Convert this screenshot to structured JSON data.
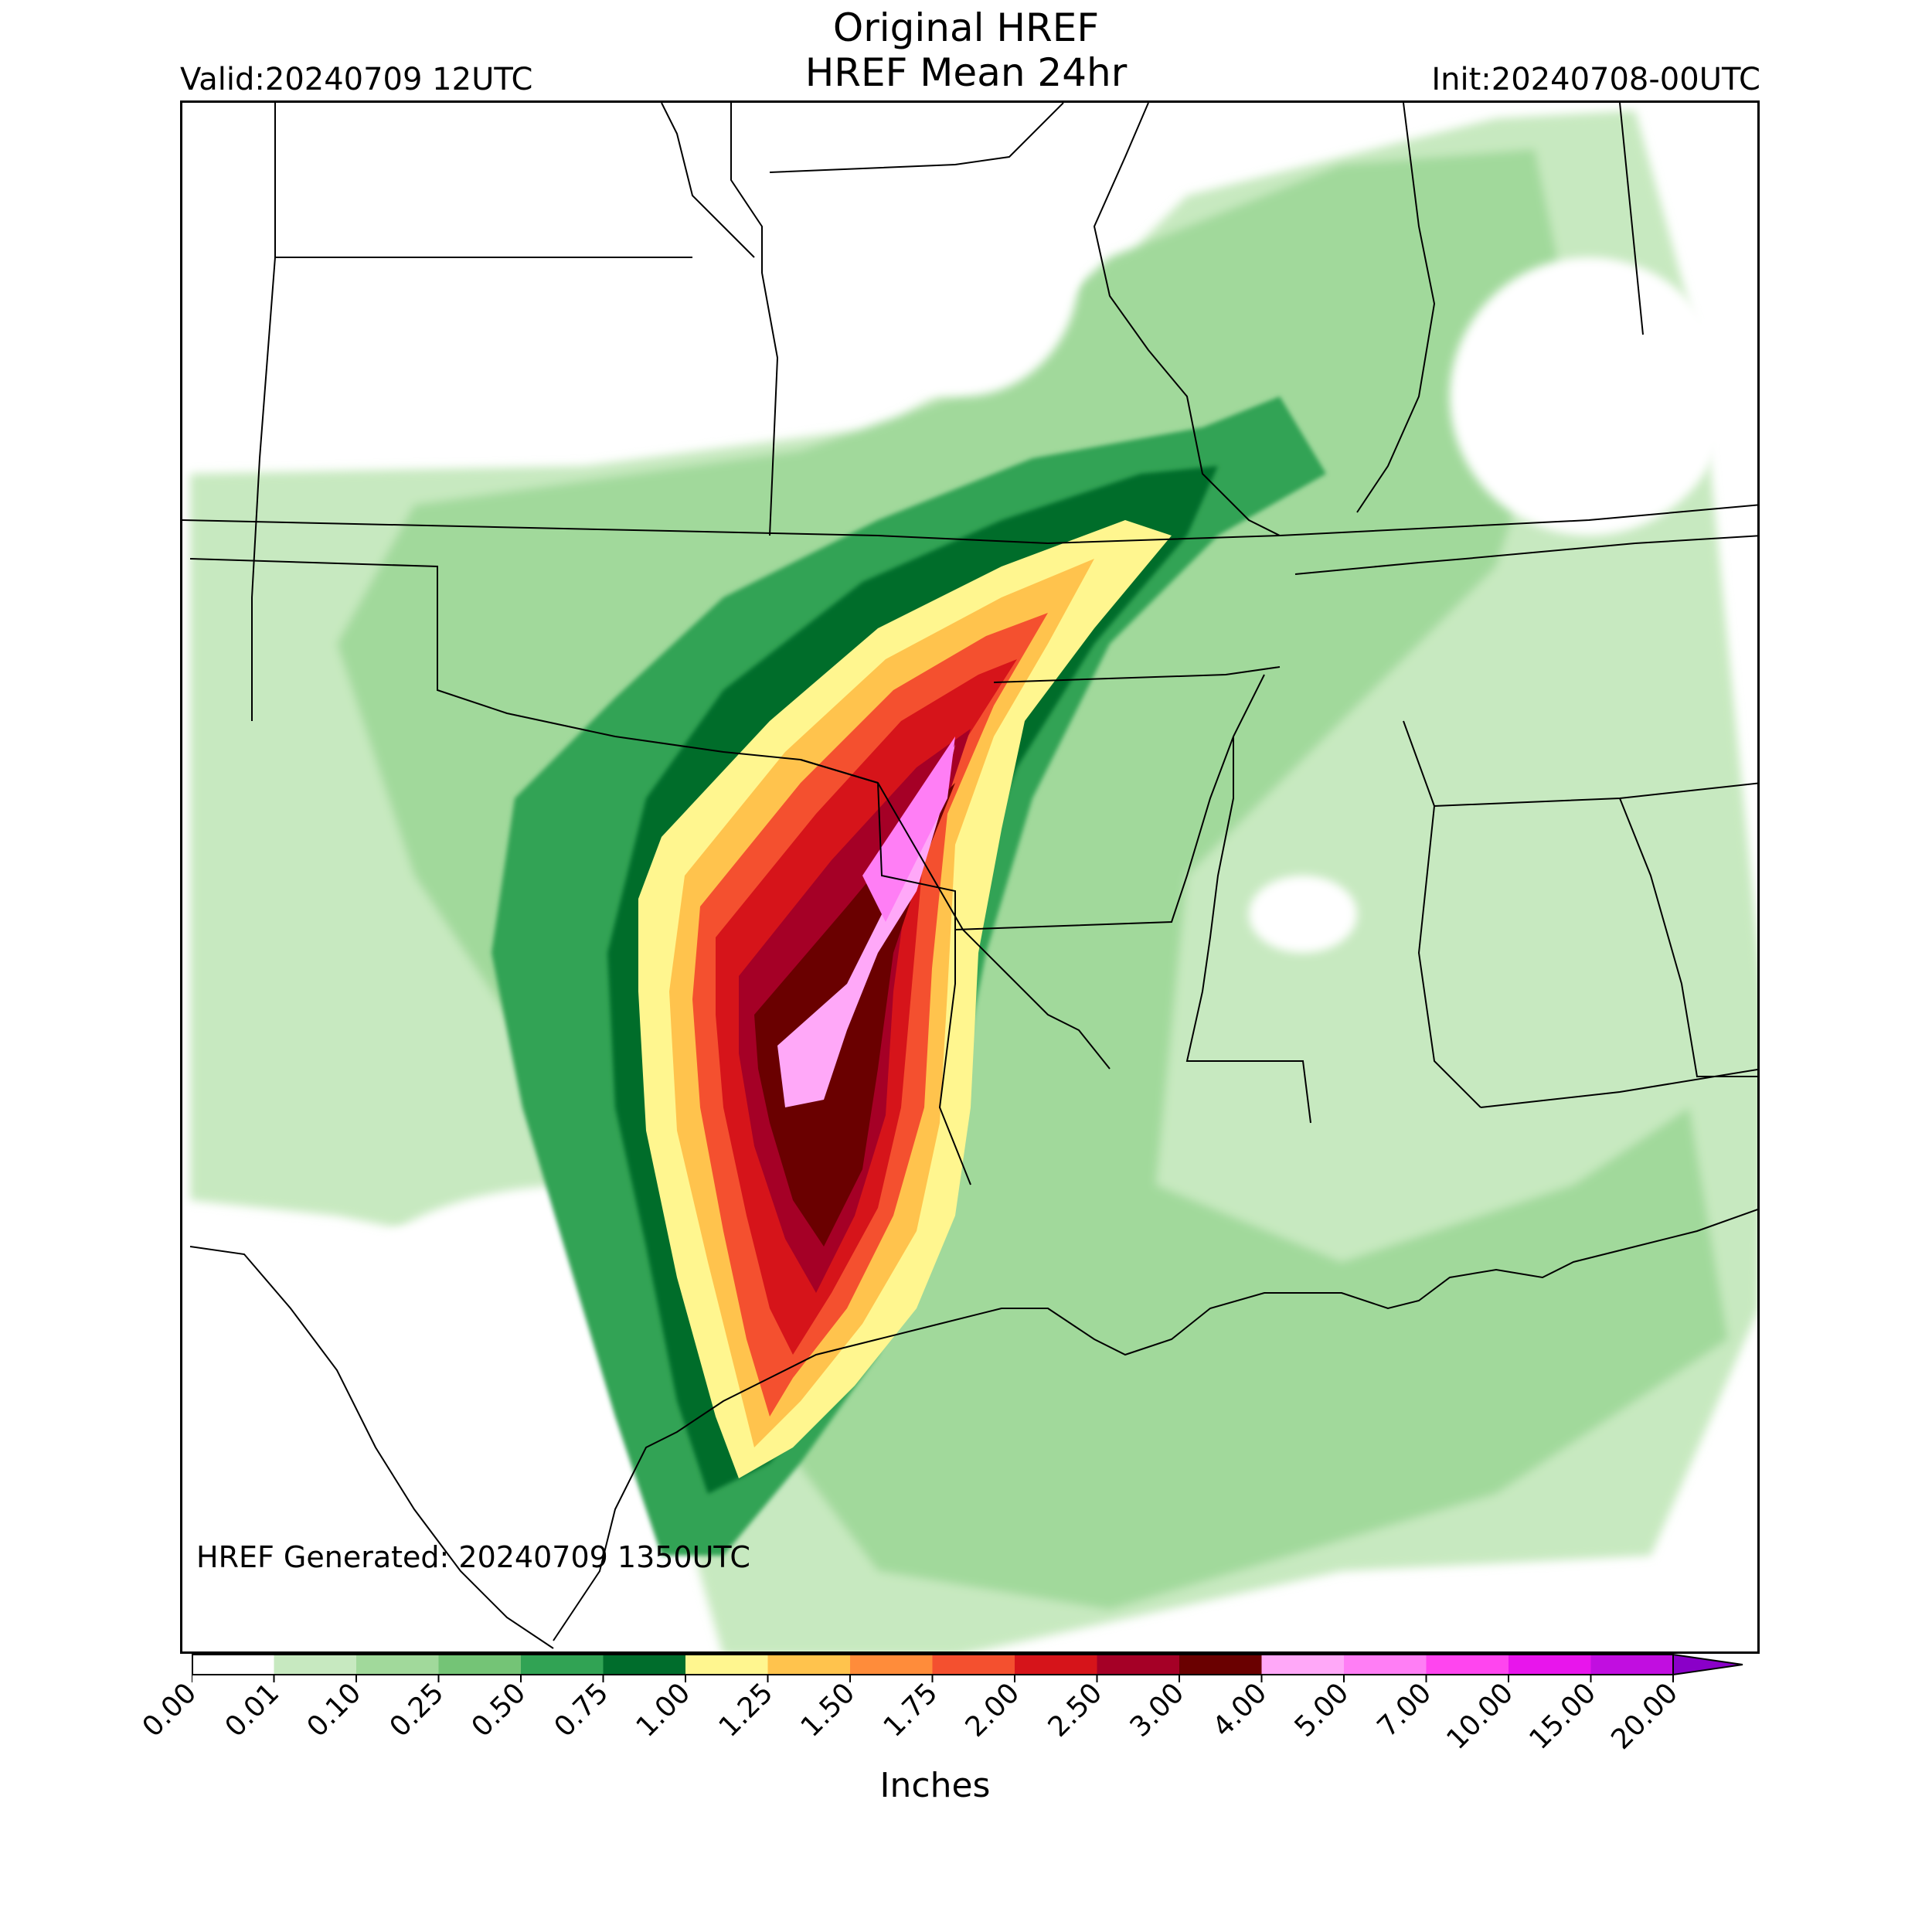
{
  "header": {
    "title_line1": "Original HREF",
    "title_line2": "HREF Mean 24hr",
    "valid": "Valid:20240709 12UTC",
    "init": "Init:20240708-00UTC"
  },
  "map": {
    "generated": "HREF Generated: 20240709 1350UTC",
    "field": "24-hour mean precipitation",
    "max_band": "4.00-5.00"
  },
  "colorbar": {
    "unit": "Inches",
    "ticks": [
      "0.00",
      "0.01",
      "0.10",
      "0.25",
      "0.50",
      "0.75",
      "1.00",
      "1.25",
      "1.50",
      "1.75",
      "2.00",
      "2.50",
      "3.00",
      "4.00",
      "5.00",
      "7.00",
      "10.00",
      "15.00",
      "20.00"
    ],
    "colors": [
      "#ffffff",
      "#c7e9c0",
      "#a1d99b",
      "#74c476",
      "#31a354",
      "#006d2c",
      "#fff68f",
      "#ffc34d",
      "#ff8c3a",
      "#f4502f",
      "#d6141a",
      "#a50026",
      "#6a0000",
      "#ffa8f8",
      "#ff7ef5",
      "#ff45ef",
      "#e815ec",
      "#c10ee0",
      "#8a00c8"
    ]
  }
}
